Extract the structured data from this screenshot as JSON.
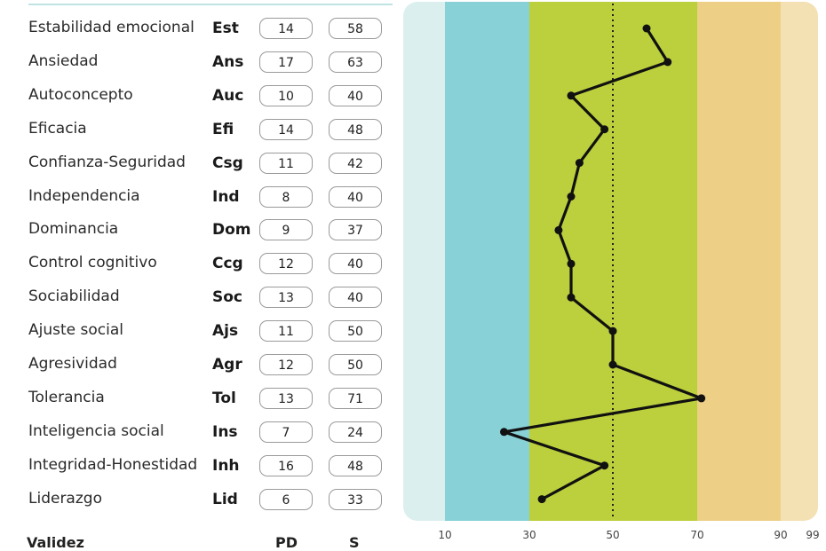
{
  "rows": [
    {
      "name": "Estabilidad emocional",
      "abbr": "Est",
      "pd": "14",
      "s": "58"
    },
    {
      "name": "Ansiedad",
      "abbr": "Ans",
      "pd": "17",
      "s": "63"
    },
    {
      "name": "Autoconcepto",
      "abbr": "Auc",
      "pd": "10",
      "s": "40"
    },
    {
      "name": "Eficacia",
      "abbr": "Efi",
      "pd": "14",
      "s": "48"
    },
    {
      "name": "Confianza-Seguridad",
      "abbr": "Csg",
      "pd": "11",
      "s": "42"
    },
    {
      "name": "Independencia",
      "abbr": "Ind",
      "pd": "8",
      "s": "40"
    },
    {
      "name": "Dominancia",
      "abbr": "Dom",
      "pd": "9",
      "s": "37"
    },
    {
      "name": "Control cognitivo",
      "abbr": "Ccg",
      "pd": "12",
      "s": "40"
    },
    {
      "name": "Sociabilidad",
      "abbr": "Soc",
      "pd": "13",
      "s": "40"
    },
    {
      "name": "Ajuste social",
      "abbr": "Ajs",
      "pd": "11",
      "s": "50"
    },
    {
      "name": "Agresividad",
      "abbr": "Agr",
      "pd": "12",
      "s": "50"
    },
    {
      "name": "Tolerancia",
      "abbr": "Tol",
      "pd": "13",
      "s": "71"
    },
    {
      "name": "Inteligencia social",
      "abbr": "Ins",
      "pd": "7",
      "s": "24"
    },
    {
      "name": "Integridad-Honestidad",
      "abbr": "Inh",
      "pd": "16",
      "s": "48"
    },
    {
      "name": "Liderazgo",
      "abbr": "Lid",
      "pd": "6",
      "s": "33"
    }
  ],
  "footer": {
    "validez": "Validez",
    "pd": "PD",
    "s": "S"
  },
  "chart_data": {
    "type": "line",
    "orientation": "vertical-profile",
    "categories": [
      "Est",
      "Ans",
      "Auc",
      "Efi",
      "Csg",
      "Ind",
      "Dom",
      "Ccg",
      "Soc",
      "Ajs",
      "Agr",
      "Tol",
      "Ins",
      "Inh",
      "Lid"
    ],
    "values": [
      58,
      63,
      40,
      48,
      42,
      40,
      37,
      40,
      40,
      50,
      50,
      71,
      24,
      48,
      33
    ],
    "xlim": [
      1,
      99
    ],
    "xticks": [
      10,
      30,
      50,
      70,
      90,
      99
    ],
    "reference_line": 50,
    "bands": [
      {
        "from": 1,
        "to": 10,
        "color": "#dcefef"
      },
      {
        "from": 10,
        "to": 30,
        "color": "#87d1d7"
      },
      {
        "from": 30,
        "to": 70,
        "color": "#bccf3c"
      },
      {
        "from": 70,
        "to": 90,
        "color": "#edcf86"
      },
      {
        "from": 90,
        "to": 99,
        "color": "#f3e1b3"
      }
    ],
    "line_color": "#111111"
  }
}
